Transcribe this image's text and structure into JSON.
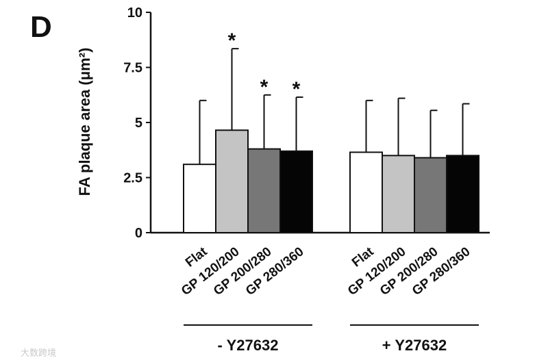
{
  "panel_label": "D",
  "watermark": "大数跨境",
  "chart_data": {
    "type": "bar",
    "ylabel": "FA plaque area (μm²)",
    "ylim": [
      0,
      10
    ],
    "yticks": [
      "0",
      "2.5",
      "5",
      "7.5",
      "10"
    ],
    "ytick_values": [
      0,
      2.5,
      5,
      7.5,
      10
    ],
    "groups": [
      {
        "label": "- Y27632",
        "bars": [
          {
            "category": "Flat",
            "value": 3.1,
            "error": 2.9,
            "sig": "",
            "color": "#ffffff"
          },
          {
            "category": "GP 120/200",
            "value": 4.65,
            "error": 3.7,
            "sig": "*",
            "color": "#c4c4c4"
          },
          {
            "category": "GP 200/280",
            "value": 3.8,
            "error": 2.45,
            "sig": "*",
            "color": "#777777"
          },
          {
            "category": "GP 280/360",
            "value": 3.7,
            "error": 2.45,
            "sig": "*",
            "color": "#050505"
          }
        ]
      },
      {
        "label": "+ Y27632",
        "bars": [
          {
            "category": "Flat",
            "value": 3.65,
            "error": 2.35,
            "sig": "",
            "color": "#ffffff"
          },
          {
            "category": "GP 120/200",
            "value": 3.5,
            "error": 2.6,
            "sig": "",
            "color": "#c4c4c4"
          },
          {
            "category": "GP 200/280",
            "value": 3.4,
            "error": 2.15,
            "sig": "",
            "color": "#777777"
          },
          {
            "category": "GP 280/360",
            "value": 3.5,
            "error": 2.35,
            "sig": "",
            "color": "#050505"
          }
        ]
      }
    ]
  }
}
